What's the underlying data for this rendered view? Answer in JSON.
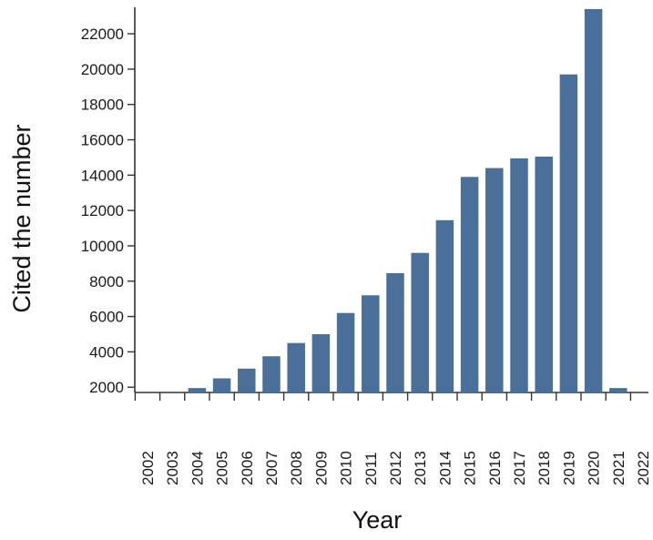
{
  "chart_data": {
    "type": "bar",
    "title": "",
    "xlabel": "Year",
    "ylabel": "Cited the number",
    "categories": [
      "2002",
      "2003",
      "2004",
      "2005",
      "2006",
      "2007",
      "2008",
      "2009",
      "2010",
      "2011",
      "2012",
      "2013",
      "2014",
      "2015",
      "2016",
      "2017",
      "2018",
      "2019",
      "2020",
      "2021",
      "2022"
    ],
    "values": [
      1600,
      1600,
      1950,
      2500,
      3050,
      3750,
      4500,
      5000,
      6200,
      7200,
      8450,
      9600,
      11450,
      13900,
      14400,
      14950,
      15050,
      19700,
      23400,
      1950,
      1600
    ],
    "ylim": [
      1700,
      23500
    ],
    "yticks": [
      2000,
      4000,
      6000,
      8000,
      10000,
      12000,
      14000,
      16000,
      18000,
      20000,
      22000
    ],
    "bar_color": "#4a6f99",
    "grid": false,
    "legend": "none"
  }
}
